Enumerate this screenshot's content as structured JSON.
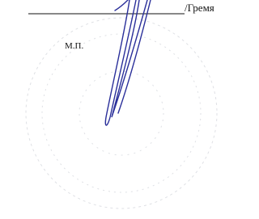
{
  "signature": {
    "name": "/Гремя"
  },
  "stamp": {
    "label": "М.П."
  }
}
